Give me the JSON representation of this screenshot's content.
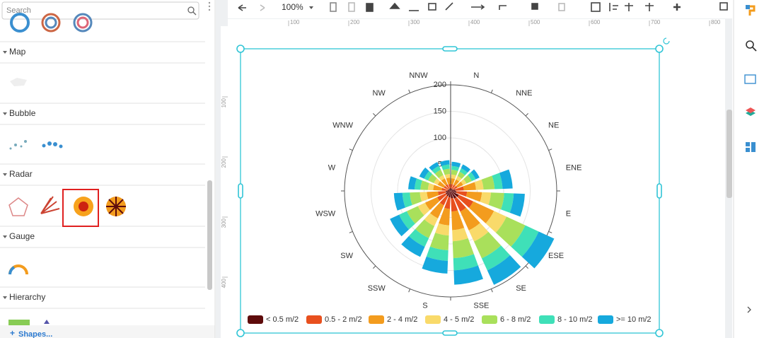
{
  "sidebar": {
    "search_placeholder": "Search",
    "sections": [
      "Map",
      "Bubble",
      "Radar",
      "Gauge",
      "Hierarchy"
    ],
    "footer": "Shapes..."
  },
  "toolbar": {
    "zoom": "100%"
  },
  "ruler": {
    "top": [
      100,
      200,
      300,
      400,
      500,
      600,
      700,
      800
    ],
    "left": [
      100,
      200,
      300,
      400
    ]
  },
  "chart_data": {
    "type": "windrose",
    "categories": [
      "N",
      "NNE",
      "NE",
      "ENE",
      "E",
      "ESE",
      "SE",
      "SSE",
      "S",
      "SSW",
      "SW",
      "WSW",
      "W",
      "WNW",
      "NW",
      "NNW"
    ],
    "series": [
      {
        "name": "< 0.5 m/2",
        "color": "#5e0b0b",
        "values": [
          5,
          5,
          5,
          9,
          11,
          17,
          16,
          14,
          12,
          11,
          10,
          9,
          6,
          5,
          5,
          5
        ]
      },
      {
        "name": "0.5 - 2 m/2",
        "color": "#e8501e",
        "values": [
          8,
          8,
          9,
          16,
          20,
          30,
          27,
          25,
          22,
          19,
          18,
          15,
          11,
          9,
          9,
          8
        ]
      },
      {
        "name": "2 - 4 m/2",
        "color": "#f39c1e",
        "values": [
          11,
          11,
          12,
          23,
          28,
          43,
          39,
          35,
          31,
          27,
          25,
          21,
          16,
          13,
          12,
          12
        ]
      },
      {
        "name": "4 - 5 m/2",
        "color": "#f9da6a",
        "values": [
          7,
          7,
          7,
          14,
          17,
          26,
          23,
          21,
          19,
          16,
          15,
          13,
          10,
          8,
          7,
          7
        ]
      },
      {
        "name": "6 - 8 m/2",
        "color": "#a9e05b",
        "values": [
          9,
          9,
          11,
          21,
          25,
          39,
          35,
          32,
          28,
          25,
          23,
          19,
          14,
          12,
          11,
          10
        ]
      },
      {
        "name": "8 - 10 m/2",
        "color": "#3fe0b8",
        "values": [
          7,
          7,
          8,
          15,
          18,
          28,
          25,
          23,
          20,
          18,
          16,
          14,
          11,
          8,
          8,
          8
        ]
      },
      {
        "name": ">= 10 m/2",
        "color": "#16a9dd",
        "values": [
          8,
          8,
          8,
          19,
          21,
          32,
          30,
          27,
          24,
          21,
          19,
          16,
          12,
          10,
          8,
          8
        ]
      }
    ],
    "ylim": [
      0,
      200
    ],
    "yticks": [
      50,
      100,
      150,
      200
    ],
    "grid": true
  }
}
